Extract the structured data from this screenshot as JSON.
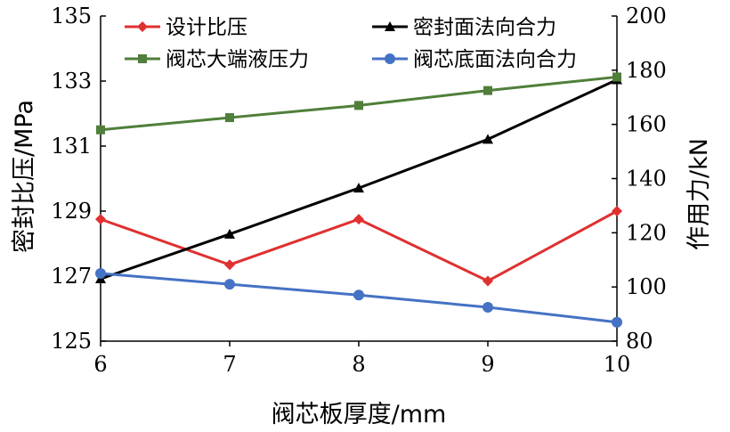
{
  "chart_data": {
    "type": "line",
    "xlabel": "阀芯板厚度/mm",
    "ylabel_left": "密封比压/MPa",
    "ylabel_right": "作用力/kN",
    "x": [
      6,
      7,
      8,
      9,
      10
    ],
    "xlim": [
      6,
      10
    ],
    "ylim_left": [
      125,
      135
    ],
    "ylim_right": [
      80,
      200
    ],
    "xticks": [
      "6",
      "7",
      "8",
      "9",
      "10"
    ],
    "yticks_left": [
      "125",
      "127",
      "129",
      "131",
      "133",
      "135"
    ],
    "yticks_right": [
      "80",
      "100",
      "120",
      "140",
      "160",
      "180",
      "200"
    ],
    "grid": false,
    "legend_position": "top",
    "series": [
      {
        "name": "设计比压",
        "axis": "left",
        "marker": "diamond",
        "color": "#e03030",
        "values": [
          128.75,
          127.35,
          128.75,
          126.85,
          129.0
        ]
      },
      {
        "name": "密封面法向合力",
        "axis": "right",
        "marker": "triangle",
        "color": "#000000",
        "values": [
          103,
          119.5,
          136.5,
          154.5,
          176.5
        ]
      },
      {
        "name": "阀芯大端液压力",
        "axis": "right",
        "marker": "square",
        "color": "#4f7f3a",
        "values": [
          158,
          162.5,
          167,
          172.5,
          177.5
        ]
      },
      {
        "name": "阀芯底面法向合力",
        "axis": "right",
        "marker": "circle",
        "color": "#4472c4",
        "values": [
          105,
          101,
          97,
          92.5,
          87
        ]
      }
    ]
  }
}
